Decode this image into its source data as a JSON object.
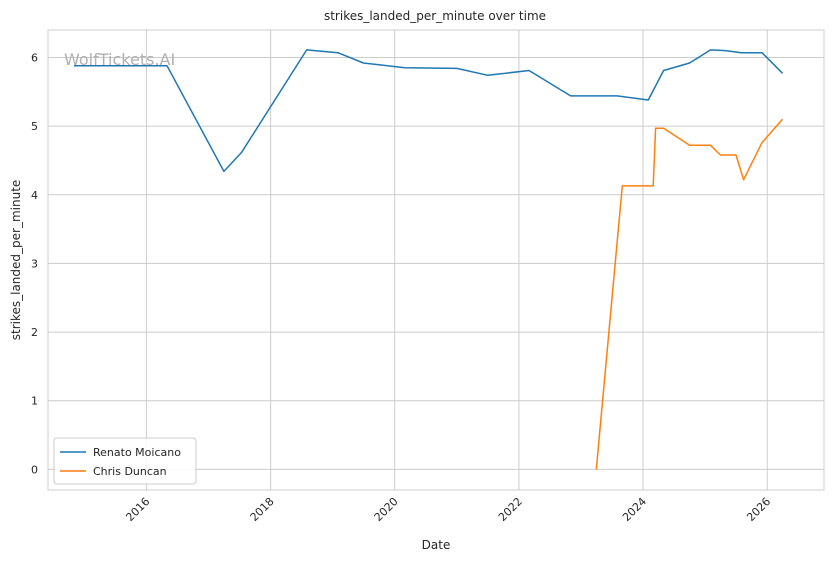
{
  "chart_data": {
    "type": "line",
    "title": "strikes_landed_per_minute over time",
    "xlabel": "Date",
    "ylabel": "strikes_landed_per_minute",
    "watermark": "WolfTickets.AI",
    "xlim": [
      "2014-06-01",
      "2026-12-01"
    ],
    "ylim": [
      -0.3,
      6.4
    ],
    "x_ticks": [
      {
        "label": "2016",
        "date": "2016-01-01"
      },
      {
        "label": "2018",
        "date": "2018-01-01"
      },
      {
        "label": "2020",
        "date": "2020-01-01"
      },
      {
        "label": "2022",
        "date": "2022-01-01"
      },
      {
        "label": "2024",
        "date": "2024-01-01"
      },
      {
        "label": "2026",
        "date": "2026-01-01"
      }
    ],
    "y_ticks": [
      0,
      1,
      2,
      3,
      4,
      5,
      6
    ],
    "grid": true,
    "legend_position": "lower-left",
    "series": [
      {
        "name": "Renato Moicano",
        "color": "#1f77b4",
        "points": [
          [
            "2014-11-01",
            5.88
          ],
          [
            "2016-05-01",
            5.88
          ],
          [
            "2017-04-01",
            4.34
          ],
          [
            "2017-07-15",
            4.62
          ],
          [
            "2018-08-01",
            6.11
          ],
          [
            "2019-02-01",
            6.07
          ],
          [
            "2019-07-01",
            5.92
          ],
          [
            "2020-03-01",
            5.85
          ],
          [
            "2021-01-01",
            5.84
          ],
          [
            "2021-07-01",
            5.74
          ],
          [
            "2022-03-01",
            5.81
          ],
          [
            "2022-11-01",
            5.44
          ],
          [
            "2023-08-01",
            5.44
          ],
          [
            "2024-02-01",
            5.38
          ],
          [
            "2024-05-01",
            5.81
          ],
          [
            "2024-10-01",
            5.92
          ],
          [
            "2025-02-01",
            6.11
          ],
          [
            "2025-05-01",
            6.1
          ],
          [
            "2025-08-01",
            6.07
          ],
          [
            "2025-12-01",
            6.07
          ],
          [
            "2026-04-01",
            5.77
          ]
        ]
      },
      {
        "name": "Chris Duncan",
        "color": "#ff7f0e",
        "points": [
          [
            "2023-04-01",
            0.0
          ],
          [
            "2023-09-01",
            4.13
          ],
          [
            "2024-03-01",
            4.13
          ],
          [
            "2024-03-15",
            4.97
          ],
          [
            "2024-05-01",
            4.97
          ],
          [
            "2024-10-01",
            4.72
          ],
          [
            "2025-02-01",
            4.72
          ],
          [
            "2025-04-01",
            4.58
          ],
          [
            "2025-07-01",
            4.58
          ],
          [
            "2025-08-15",
            4.22
          ],
          [
            "2025-12-01",
            4.76
          ],
          [
            "2026-04-01",
            5.1
          ]
        ]
      }
    ]
  }
}
